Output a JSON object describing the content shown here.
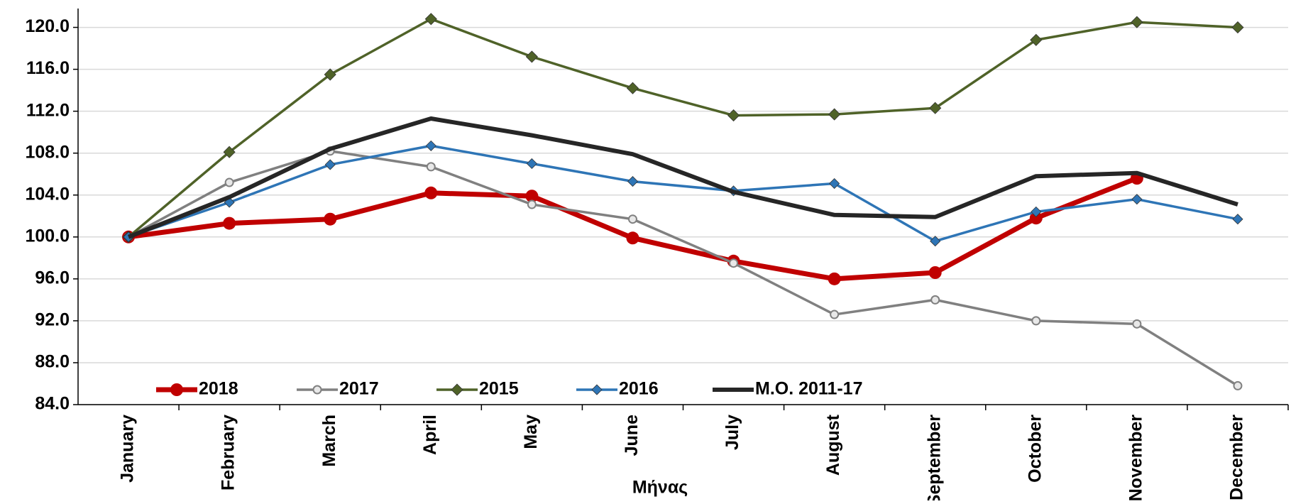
{
  "chart_data": {
    "type": "line",
    "x_label": "Μήνας",
    "categories": [
      "January",
      "February",
      "March",
      "April",
      "May",
      "June",
      "July",
      "August",
      "September",
      "October",
      "November",
      "December"
    ],
    "series": [
      {
        "name": "2018",
        "color": "#c00000",
        "marker": "circle",
        "width": 7,
        "msize": 9,
        "values": [
          100,
          101.3,
          101.7,
          104.2,
          103.9,
          99.9,
          97.7,
          96.0,
          96.6,
          101.8,
          105.6,
          null
        ]
      },
      {
        "name": "2017",
        "color": "#808080",
        "marker": "circle-open",
        "width": 3.5,
        "msize": 5.5,
        "values": [
          100,
          105.2,
          108.2,
          106.7,
          103.1,
          101.7,
          97.5,
          92.6,
          94.0,
          92.0,
          91.7,
          85.8
        ]
      },
      {
        "name": "2015",
        "color": "#4f6228",
        "marker": "diamond",
        "width": 3.5,
        "msize": 8,
        "values": [
          100,
          108.1,
          115.5,
          120.8,
          117.2,
          114.2,
          111.6,
          111.7,
          112.3,
          118.8,
          120.5,
          120.0
        ]
      },
      {
        "name": "2016",
        "color": "#2e75b6",
        "marker": "diamond",
        "width": 3.5,
        "msize": 7,
        "values": [
          100,
          103.3,
          106.9,
          108.7,
          107.0,
          105.3,
          104.4,
          105.1,
          99.6,
          102.4,
          103.6,
          101.7
        ]
      },
      {
        "name": "M.O. 2011-17",
        "color": "#262626",
        "marker": "none",
        "width": 6,
        "msize": 0,
        "values": [
          100,
          103.8,
          108.4,
          111.3,
          109.7,
          107.9,
          104.3,
          102.1,
          101.9,
          105.8,
          106.1,
          103.1
        ]
      }
    ],
    "ylim": [
      84,
      121.8
    ],
    "yticks": [
      {
        "value": 84,
        "label": "84.0"
      },
      {
        "value": 88,
        "label": "88.0"
      },
      {
        "value": 92,
        "label": "92.0"
      },
      {
        "value": 96,
        "label": "96.0"
      },
      {
        "value": 100,
        "label": "100.0"
      },
      {
        "value": 104,
        "label": "104.0"
      },
      {
        "value": 108,
        "label": "108.0"
      },
      {
        "value": 112,
        "label": "112.0"
      },
      {
        "value": 116,
        "label": "116.0"
      },
      {
        "value": 120,
        "label": "120.0"
      }
    ],
    "grid": true,
    "legend": "bottom-left"
  }
}
